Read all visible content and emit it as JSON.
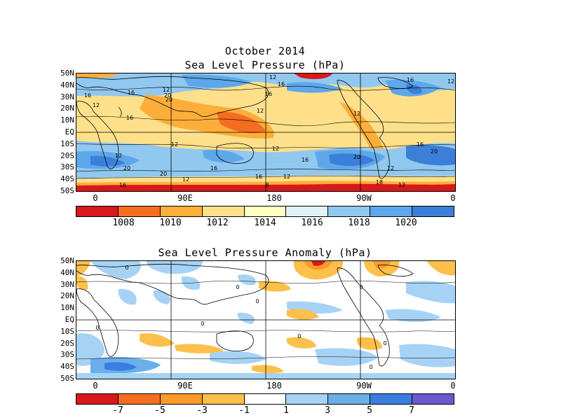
{
  "titles": {
    "main": "October 2014",
    "slp": "Sea Level Pressure (hPa)",
    "anomaly": "Sea Level Pressure Anomaly (hPa)"
  },
  "lat_labels": [
    "50N",
    "40N",
    "30N",
    "20N",
    "10N",
    "EQ",
    "10S",
    "20S",
    "30S",
    "40S",
    "50S"
  ],
  "lon_labels": [
    "0",
    "90E",
    "180",
    "90W",
    "0"
  ],
  "slp_colorbar": {
    "colors": [
      "#d7191c",
      "#f46d20",
      "#fdae3a",
      "#fee08b",
      "#ffffbf",
      "#e0f3f8",
      "#91c8f0",
      "#5ea7ea",
      "#3b7fd9"
    ],
    "labels": [
      "1008",
      "1010",
      "1012",
      "1014",
      "1016",
      "1018",
      "1020"
    ]
  },
  "anom_colorbar": {
    "colors": [
      "#d7191c",
      "#f46d20",
      "#f99a2a",
      "#fdc04a",
      "#ffffff",
      "#a6d3f5",
      "#6aaeea",
      "#3a7fde",
      "#6a5acd"
    ],
    "labels": [
      "-7",
      "-5",
      "-3",
      "-1",
      "1",
      "3",
      "5",
      "7"
    ]
  },
  "contour_labels": {
    "slp": [
      "12",
      "20",
      "16",
      "12",
      "16",
      "16",
      "12",
      "12",
      "16",
      "12",
      "16",
      "12",
      "20",
      "16",
      "12",
      "12",
      "12",
      "16",
      "20",
      "20",
      "12",
      "16",
      "8",
      "16",
      "12",
      "18",
      "12",
      "16",
      "20",
      "12",
      "16",
      "20"
    ],
    "anomaly": [
      "0",
      "0",
      "0",
      "0",
      "0",
      "0",
      "0",
      "0",
      "0"
    ]
  }
}
